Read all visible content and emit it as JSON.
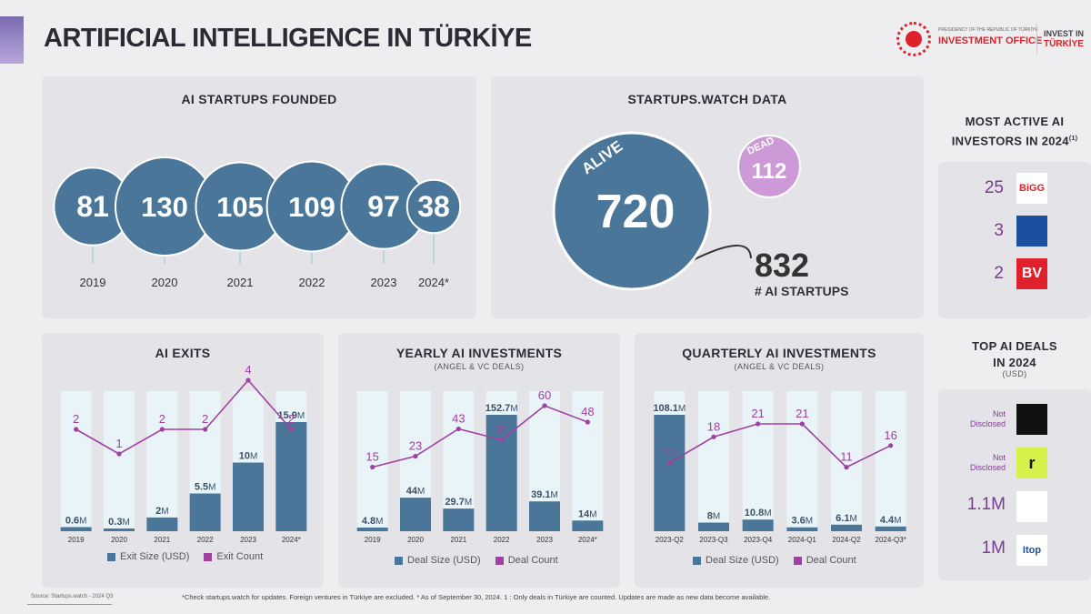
{
  "header": {
    "title": "ARTIFICIAL INTELLIGENCE IN TÜRKİYE"
  },
  "logo": {
    "presidency": "PRESIDENCY OF THE REPUBLIC OF TÜRKİYE",
    "office": "INVESTMENT OFFICE",
    "invest_line1": "INVEST IN",
    "invest_line2": "TÜRKİYE"
  },
  "colors": {
    "bar": "#4a7699",
    "bar_track": "#e8f4f8",
    "line": "#a040a0",
    "dead": "#cc9ad6"
  },
  "panels": {
    "startups_founded": "AI STARTUPS FOUNDED",
    "startups_watch": "STARTUPS.WATCH DATA",
    "most_active_line1": "MOST ACTIVE AI",
    "most_active_line2": "INVESTORS IN 2024",
    "most_active_sup": "(1)",
    "exits": "AI EXITS",
    "yearly": "YEARLY AI INVESTMENTS",
    "yearly_sub": "(ANGEL & VC DEALS)",
    "quarterly": "QUARTERLY AI INVESTMENTS",
    "quarterly_sub": "(ANGEL & VC DEALS)",
    "top_deals_line1": "TOP AI DEALS",
    "top_deals_line2": "IN 2024",
    "top_deals_sub": "(USD)"
  },
  "chart_data": [
    {
      "id": "founded",
      "type": "bubble",
      "categories": [
        "2019",
        "2020",
        "2021",
        "2022",
        "2023",
        "2024*"
      ],
      "values": [
        81,
        130,
        105,
        109,
        97,
        38
      ]
    },
    {
      "id": "status",
      "type": "bubble",
      "alive_label": "ALIVE",
      "alive": 720,
      "dead_label": "DEAD",
      "dead": 112,
      "total": 832,
      "total_label": "# AI STARTUPS"
    },
    {
      "id": "exits",
      "type": "bar+line",
      "categories": [
        "2019",
        "2020",
        "2021",
        "2022",
        "2023",
        "2024*"
      ],
      "series": [
        {
          "name": "Exit Size (USD)",
          "values": [
            0.6,
            0.3,
            2,
            5.5,
            10,
            15.9
          ],
          "labels": [
            "0.6M",
            "0.3M",
            "2M",
            "5.5M",
            "10M",
            "15.9M"
          ]
        },
        {
          "name": "Exit Count",
          "values": [
            2,
            1,
            2,
            2,
            4,
            2
          ]
        }
      ]
    },
    {
      "id": "yearly",
      "type": "bar+line",
      "categories": [
        "2019",
        "2020",
        "2021",
        "2022",
        "2023",
        "2024*"
      ],
      "series": [
        {
          "name": "Deal Size (USD)",
          "values": [
            4.8,
            44,
            29.7,
            152.7,
            39.1,
            14
          ],
          "labels": [
            "4.8M",
            "44M",
            "29.7M",
            "152.7M",
            "39.1M",
            "14M"
          ]
        },
        {
          "name": "Deal Count",
          "values": [
            15,
            23,
            43,
            35,
            60,
            48
          ]
        }
      ]
    },
    {
      "id": "quarterly",
      "type": "bar+line",
      "categories": [
        "2023-Q2",
        "2023-Q3",
        "2023-Q4",
        "2024-Q1",
        "2024-Q2",
        "2024-Q3*"
      ],
      "series": [
        {
          "name": "Deal Size (USD)",
          "values": [
            108.1,
            8,
            10.8,
            3.6,
            6.1,
            4.4
          ],
          "labels": [
            "108.1M",
            "8M",
            "10.8M",
            "3.6M",
            "6.1M",
            "4.4M"
          ]
        },
        {
          "name": "Deal Count",
          "values": [
            12,
            18,
            21,
            21,
            11,
            16
          ]
        }
      ]
    }
  ],
  "investors": [
    {
      "count": "25",
      "logo_text": "BiGG",
      "logo_bg": "#ffffff",
      "logo_fg": "#e0202a"
    },
    {
      "count": "3",
      "logo_text": "",
      "logo_bg": "#1c4fa0",
      "logo_fg": "#ffffff"
    },
    {
      "count": "2",
      "logo_text": "BV",
      "logo_bg": "#e0202a",
      "logo_fg": "#ffffff"
    }
  ],
  "top_deals": [
    {
      "value": "Not Disclosed",
      "logo_text": "",
      "logo_bg": "#111111",
      "logo_fg": "#ffffff"
    },
    {
      "value": "Not Disclosed",
      "logo_text": "r",
      "logo_bg": "#d7f04a",
      "logo_fg": "#111111"
    },
    {
      "value": "1.1M",
      "logo_text": "",
      "logo_bg": "#ffffff",
      "logo_fg": "#1c4fa0"
    },
    {
      "value": "1M",
      "logo_text": "Itop",
      "logo_bg": "#ffffff",
      "logo_fg": "#1c4fa0"
    }
  ],
  "footer": {
    "source": "Source: Startups.watch - 2024 Q3",
    "note": "*Check startups.watch for updates. Foreign ventures in Türkiye are excluded. * As of September 30, 2024. 1 : Only deals in Türkiye are counted. Updates are made as new data become available."
  }
}
